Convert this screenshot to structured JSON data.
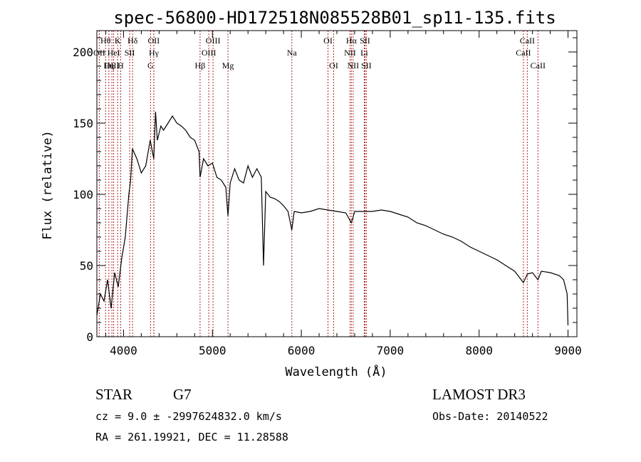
{
  "chart_data": {
    "type": "line",
    "title": "spec-56800-HD172518N085528B01_sp11-135.fits",
    "xlabel": "Wavelength (Å)",
    "ylabel": "Flux (relative)",
    "xlim": [
      3700,
      9100
    ],
    "ylim": [
      0,
      215
    ],
    "x_ticks": [
      4000,
      5000,
      6000,
      7000,
      8000,
      9000
    ],
    "y_ticks": [
      0,
      50,
      100,
      150,
      200
    ],
    "grid": false,
    "series": [
      {
        "x": [
          3700,
          3740,
          3780,
          3820,
          3860,
          3900,
          3940,
          3980,
          4020,
          4060,
          4080,
          4100,
          4150,
          4200,
          4250,
          4300,
          4340,
          4360,
          4380,
          4420,
          4450,
          4500,
          4550,
          4600,
          4650,
          4700,
          4750,
          4800,
          4850,
          4861,
          4900,
          4950,
          5000,
          5050,
          5100,
          5150,
          5175,
          5200,
          5250,
          5300,
          5350,
          5400,
          5450,
          5500,
          5550,
          5575,
          5600,
          5650,
          5700,
          5750,
          5800,
          5850,
          5893,
          5920,
          6000,
          6100,
          6200,
          6300,
          6400,
          6500,
          6563,
          6600,
          6700,
          6800,
          6900,
          7000,
          7100,
          7200,
          7300,
          7400,
          7500,
          7600,
          7700,
          7800,
          7900,
          8000,
          8100,
          8200,
          8300,
          8400,
          8498,
          8542,
          8600,
          8662,
          8700,
          8800,
          8900,
          8950,
          8990,
          9000
        ],
        "y": [
          15,
          30,
          25,
          40,
          20,
          45,
          35,
          55,
          70,
          100,
          110,
          132,
          125,
          115,
          120,
          138,
          125,
          158,
          138,
          148,
          145,
          150,
          155,
          150,
          148,
          145,
          140,
          138,
          130,
          112,
          125,
          120,
          122,
          112,
          110,
          105,
          85,
          108,
          118,
          110,
          108,
          120,
          112,
          118,
          112,
          50,
          102,
          98,
          97,
          95,
          92,
          88,
          75,
          88,
          87,
          88,
          90,
          89,
          88,
          87,
          80,
          88,
          88,
          88,
          89,
          88,
          86,
          84,
          80,
          78,
          75,
          72,
          70,
          67,
          63,
          60,
          57,
          54,
          50,
          46,
          38,
          44,
          45,
          40,
          46,
          45,
          43,
          40,
          30,
          8
        ]
      }
    ],
    "line_markers": [
      {
        "label": "Hθ",
        "x": 3798,
        "row": 1
      },
      {
        "label": "OII",
        "x": 3727,
        "row": 2
      },
      {
        "label": "OIII",
        "x": 3869,
        "row": 3
      },
      {
        "label": "Hη",
        "x": 3835,
        "row": 3
      },
      {
        "label": "K",
        "x": 3934,
        "row": 1
      },
      {
        "label": "HeI",
        "x": 3889,
        "row": 2
      },
      {
        "label": "H",
        "x": 3968,
        "row": 3
      },
      {
        "label": "Hδ",
        "x": 4102,
        "row": 1
      },
      {
        "label": "SII",
        "x": 4069,
        "row": 2
      },
      {
        "label": "OII",
        "x": 4340,
        "row": 1
      },
      {
        "label": "Hγ",
        "x": 4341,
        "row": 2
      },
      {
        "label": "G",
        "x": 4304,
        "row": 3
      },
      {
        "label": "OIII",
        "x": 5007,
        "row": 1
      },
      {
        "label": "OIII",
        "x": 4959,
        "row": 2
      },
      {
        "label": "Hβ",
        "x": 4861,
        "row": 3
      },
      {
        "label": "Mg",
        "x": 5175,
        "row": 3
      },
      {
        "label": "Na",
        "x": 5893,
        "row": 2
      },
      {
        "label": "OI",
        "x": 6300,
        "row": 1
      },
      {
        "label": "OI",
        "x": 6364,
        "row": 3
      },
      {
        "label": "Hα",
        "x": 6563,
        "row": 1
      },
      {
        "label": "SII",
        "x": 6716,
        "row": 1
      },
      {
        "label": "NII",
        "x": 6548,
        "row": 2
      },
      {
        "label": "Li",
        "x": 6708,
        "row": 2
      },
      {
        "label": "NII",
        "x": 6583,
        "row": 3
      },
      {
        "label": "SII",
        "x": 6731,
        "row": 3
      },
      {
        "label": "CaII",
        "x": 8542,
        "row": 1
      },
      {
        "label": "CaII",
        "x": 8498,
        "row": 2
      },
      {
        "label": "CaII",
        "x": 8662,
        "row": 3
      }
    ]
  },
  "footer": {
    "object_type": "STAR",
    "subclass": "G7",
    "survey": "LAMOST DR3",
    "cz_text": "cz = 9.0 ± -2997624832.0 km/s",
    "obs_date_text": "Obs-Date: 20140522",
    "coords_text": "RA = 261.19921, DEC =  11.28588"
  },
  "colors": {
    "axis": "#000000",
    "spectrum": "#000000",
    "marker_lines": "#b22222",
    "background": "#ffffff"
  }
}
